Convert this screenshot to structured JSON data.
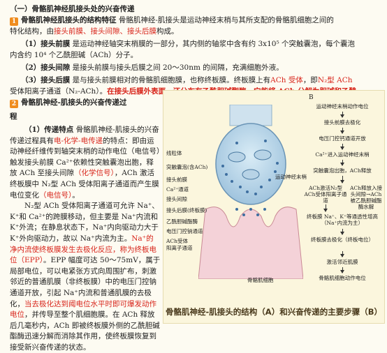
{
  "heading1": "（一）骨骼肌神经肌接头处的兴奋传递",
  "heading1_num": "1",
  "heading1_title": "骨骼肌神经肌接头的结构特征",
  "heading1_text_a": "骨骼肌神经-肌接头是运动神经末梢与其所支配的骨骼肌细胞之间的",
  "heading1_text_b": "特化结构，由",
  "heading1_red": "接头前膜、接头间隙、接头后膜",
  "heading1_tail": "构成。",
  "item1_label": "（1）接头前膜",
  "item1_text": "是运动神经轴突末梢膜的一部分，其内侧的轴浆中含有约 3x10⁵ 个突触囊泡，每个囊泡",
  "item1_text2": "内含约 10⁴ 个乙酰胆碱（ACh）分子。",
  "item2_label": "（2）接头间隙",
  "item2_text": "是接头前膜与接头后膜之间 20～30nm 的间隔，充满细胞外液。",
  "item3_label": "（3）接头后膜",
  "item3_text": "是与接头前膜相对的骨骼肌细胞膜，也称终板膜。终板膜上有",
  "item3_red1": "ACh 受体",
  "item3_text_b": "，即",
  "item3_red2": "N₂型 ACh",
  "item3_text2a": "受体阳离子通道（N₂-ACh）。",
  "item3_red3": "在接头后膜外表面，还分布有乙酰胆碱酯酶，它能将 ACh 分解为胆碱和乙酸。",
  "heading2_num": "2",
  "heading2_title_a": "骨骼肌神经-肌接头的兴奋传递过",
  "heading2_title_b": "程",
  "sub1_label": "（1）传递特点",
  "left_paragraph_segments": [
    {
      "t": "骨骼肌神经-肌接头的兴奋传递过程具有",
      "r": false
    },
    {
      "t": "电-化学-电传递",
      "r": true
    },
    {
      "t": "的特点：即由运动神经纤维传到轴突末梢的动作电位（电信号）触发接头前膜 Ca²⁺依赖性突触囊泡出胞，释放 ACh 至接头间隙",
      "r": false
    },
    {
      "t": "（化学信号）",
      "r": true
    },
    {
      "t": "，ACh 激活终板膜中 N₂型 ACh 受体阳离子通道而产生膜电位变化",
      "r": false
    },
    {
      "t": "（电信号）",
      "r": true
    },
    {
      "t": "。",
      "r": false
    }
  ],
  "left_paragraph2_segments": [
    {
      "t": "N₂型 ACh 受体阳离子通道可允许 Na⁺、K⁺和 Ca²⁺的跨膜移动，但主要是 Na⁺内流和 K⁺外流；在静息状态下，Na⁺内向驱动力大于 K⁺外向驱动力，故以 Na⁺内流为主。",
      "r": false
    },
    {
      "t": "Na⁺的净内流使终板膜发生去极化反应，称为终板电位（EPP）",
      "r": true
    },
    {
      "t": "。EPP 幅度可达 50～75mV，属于局部电位，可以电紧张方式向周围扩布，刺激邻近的普通肌膜（非终板膜）中的电压门控钠通道开放，引起 Na⁺内流和普通肌膜的去极化，",
      "r": false
    },
    {
      "t": "当去极化达到阈电位水平时即可爆发动作电位",
      "r": true
    },
    {
      "t": "，并传导至整个肌细胞膜。在 ACh 释放后几毫秒内，ACh 即被终板膜外侧的乙酰胆碱酯酶迅速分解而消除其作用，使终板膜恢复到接受新兴奋传递的状态。",
      "r": false
    }
  ],
  "figure": {
    "label_a": "A",
    "label_b": "B",
    "labels_left": [
      "线粒体",
      "突触囊泡(含ACh)",
      "接头前膜",
      "Ca²⁺通道",
      "接头间隙",
      "接头后膜(终板膜)",
      "乙酰胆碱酯酶",
      "电压门控钠通道",
      "ACh受体",
      "阳离子通道"
    ],
    "label_nerve": "运动神经末梢",
    "label_muscle": "骨骼肌细胞",
    "flow": [
      "运动神经末梢动作电位",
      "接头前膜去极化",
      "电压门控钙通道开放",
      "Ca²⁺进入运动神经末梢",
      "突触囊泡出胞，ACh释放",
      "ACh激活N₂型ACh受体阳离子通道",
      "终板膜 Na⁺、K⁺等通透性增高（Na⁺内流为主）",
      "终板膜去极化（终板电位）",
      "激活邻近肌膜",
      "骨骼肌细胞动作电位"
    ],
    "flow_side": "ACh释放入接头间隙→ACh被乙酰胆碱酯酶水解",
    "caption": "骨骼肌神经-肌接头的结构（A）和兴奋传递的主要步骤（B）"
  }
}
